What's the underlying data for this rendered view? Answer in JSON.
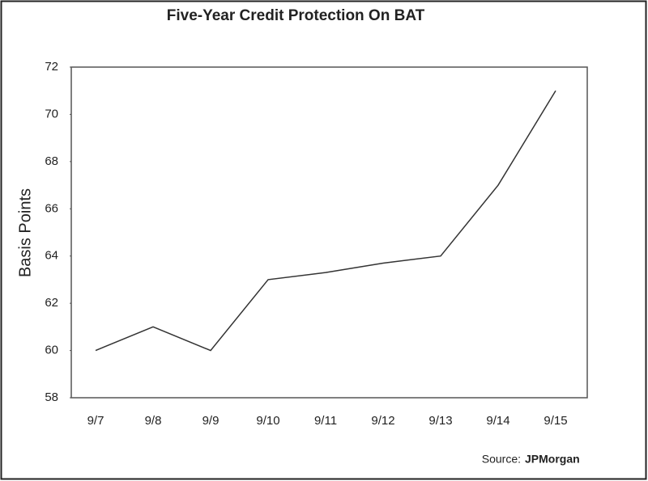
{
  "chart_data": {
    "type": "line",
    "title": "Five-Year Credit Protection On BAT",
    "y_label": "Basis Points",
    "categories": [
      "9/7",
      "9/8",
      "9/9",
      "9/10",
      "9/11",
      "9/12",
      "9/13",
      "9/14",
      "9/15"
    ],
    "series": [
      {
        "values": [
          60,
          61,
          60,
          63,
          63.3,
          63.7,
          64,
          67,
          71
        ],
        "color": "#333333"
      }
    ],
    "ylim": [
      58,
      72
    ],
    "yticks": [
      58,
      60,
      62,
      64,
      66,
      68,
      70,
      72
    ],
    "grid": false,
    "source_label": "Source:",
    "source": "JPMorgan"
  }
}
